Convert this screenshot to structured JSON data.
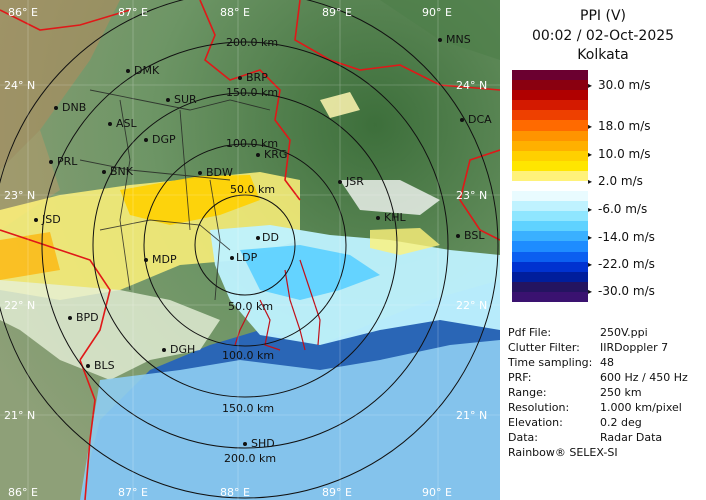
{
  "panel": {
    "title_line1": "PPI (V)",
    "title_line2": "00:02 / 02-Oct-2025",
    "title_line3": "Kolkata",
    "scale_labels": [
      "30.0 m/s",
      "18.0 m/s",
      "10.0 m/s",
      "2.0 m/s",
      "-6.0 m/s",
      "-14.0 m/s",
      "-22.0 m/s",
      "-30.0 m/s"
    ],
    "scale_colors": [
      "#6b0030",
      "#8a0010",
      "#b00000",
      "#d41a00",
      "#ee4000",
      "#ff6a00",
      "#ff9400",
      "#ffb000",
      "#ffd000",
      "#ffe600",
      "#fff27a",
      "#ffffff",
      "#e9fbff",
      "#bff2ff",
      "#8fe6ff",
      "#5fd2ff",
      "#3ab0ff",
      "#1e8cff",
      "#0b5ff0",
      "#0032d0",
      "#001e9c",
      "#241460",
      "#3a1270"
    ],
    "info": [
      {
        "k": "Pdf File:",
        "v": "250V.ppi"
      },
      {
        "k": "Clutter Filter:",
        "v": "IIRDoppler 7"
      },
      {
        "k": "Time sampling:",
        "v": "48"
      },
      {
        "k": "PRF:",
        "v": "600 Hz / 450 Hz"
      },
      {
        "k": "Range:",
        "v": "250 km"
      },
      {
        "k": "Resolution:",
        "v": "1.000 km/pixel"
      },
      {
        "k": "Elevation:",
        "v": "0.2 deg"
      },
      {
        "k": "Data:",
        "v": "Radar Data"
      }
    ],
    "credit": "Rainbow® SELEX-SI"
  },
  "map": {
    "lon_labels_top": [
      "86° E",
      "87° E",
      "88° E",
      "89° E",
      "90° E"
    ],
    "lon_labels_bottom": [
      "86° E",
      "87° E",
      "88° E",
      "89° E",
      "90° E"
    ],
    "lat_labels_left": [
      "24° N",
      "23° N",
      "22° N",
      "21° N"
    ],
    "lat_labels_right": [
      "24° N",
      "23° N",
      "22° N",
      "21° N"
    ],
    "range_labels": [
      "50.0 km",
      "100.0 km",
      "150.0 km",
      "200.0 km",
      "50.0 km",
      "100.0 km",
      "150.0 km",
      "200.0 km"
    ],
    "stations": [
      "MNS",
      "DMK",
      "BRP",
      "DNB",
      "SUR",
      "ASL",
      "DGP",
      "PRL",
      "BNK",
      "BDW",
      "KRG",
      "JSR",
      "KHL",
      "DCA",
      "JSD",
      "DD",
      "BSL",
      "MDP",
      "LDP",
      "BPD",
      "DGH",
      "BLS",
      "SHD"
    ]
  }
}
